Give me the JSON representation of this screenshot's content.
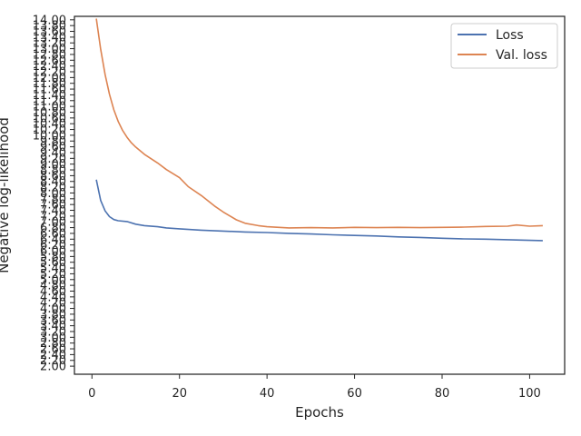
{
  "chart_data": {
    "type": "line",
    "xlabel": "Epochs",
    "ylabel": "Negative log-likelihood",
    "xlim": [
      -4,
      108
    ],
    "ylim": [
      1.72,
      14.12
    ],
    "x_ticks": [
      0,
      20,
      40,
      60,
      80,
      100
    ],
    "y_ticks": [
      2.0,
      2.2,
      2.4,
      2.6,
      2.8,
      3.0,
      3.2,
      3.4,
      3.6,
      3.8,
      4.0,
      4.2,
      4.4,
      4.6,
      4.8,
      5.0,
      5.2,
      5.4,
      5.6,
      5.8,
      6.0,
      6.2,
      6.4,
      6.6,
      6.8,
      7.0,
      7.2,
      7.4,
      7.6,
      7.8,
      8.0,
      8.2,
      8.4,
      8.6,
      8.8,
      9.0,
      9.2,
      9.4,
      9.6,
      9.8,
      10.0,
      10.2,
      10.4,
      10.6,
      10.8,
      11.0,
      11.2,
      11.4,
      11.6,
      11.8,
      12.0,
      12.2,
      12.4,
      12.6,
      12.8,
      13.0,
      13.2,
      13.4,
      13.6,
      13.8,
      14.0
    ],
    "legend_position": "top-right",
    "grid": false,
    "series": [
      {
        "name": "Loss",
        "color": "#4c72b0",
        "x": [
          1,
          2,
          3,
          4,
          5,
          6,
          8,
          10,
          12,
          15,
          17,
          20,
          25,
          30,
          35,
          40,
          45,
          50,
          55,
          60,
          65,
          70,
          75,
          80,
          85,
          90,
          95,
          100,
          103
        ],
        "y": [
          8.46,
          7.74,
          7.38,
          7.18,
          7.08,
          7.04,
          7.01,
          6.92,
          6.87,
          6.83,
          6.79,
          6.76,
          6.71,
          6.68,
          6.65,
          6.63,
          6.6,
          6.58,
          6.55,
          6.53,
          6.51,
          6.48,
          6.46,
          6.43,
          6.41,
          6.4,
          6.38,
          6.36,
          6.35
        ]
      },
      {
        "name": "Val. loss",
        "color": "#dd8452",
        "x": [
          1,
          2,
          3,
          4,
          5,
          6,
          7,
          8,
          9,
          10,
          12,
          15,
          17,
          20,
          22,
          25,
          28,
          30,
          33,
          35,
          38,
          40,
          45,
          50,
          55,
          60,
          65,
          70,
          75,
          80,
          85,
          90,
          95,
          97,
          100,
          103
        ],
        "y": [
          14.04,
          12.98,
          12.1,
          11.42,
          10.88,
          10.48,
          10.17,
          9.93,
          9.74,
          9.59,
          9.34,
          9.04,
          8.81,
          8.53,
          8.22,
          7.91,
          7.55,
          7.34,
          7.07,
          6.95,
          6.87,
          6.83,
          6.79,
          6.8,
          6.79,
          6.81,
          6.8,
          6.81,
          6.8,
          6.81,
          6.82,
          6.84,
          6.85,
          6.89,
          6.85,
          6.87
        ]
      }
    ]
  }
}
